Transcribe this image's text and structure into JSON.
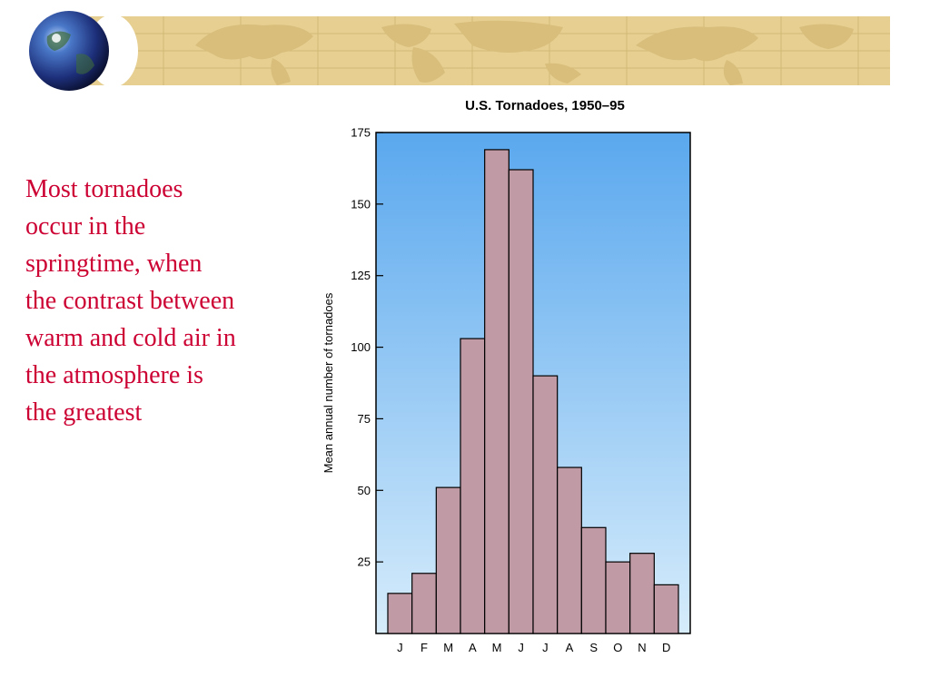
{
  "slide": {
    "caption": "Most tornadoes\noccur in the\nspringtime, when\nthe contrast between\nwarm and cold air in\nthe atmosphere is\nthe greatest",
    "caption_color": "#cc0033",
    "banner_icon": "globe-icon",
    "banner_image": "world-map-strip"
  },
  "chart_data": {
    "type": "bar",
    "title": "U.S. Tornadoes, 1950–95",
    "xlabel": "",
    "ylabel": "Mean annual number of tornadoes",
    "categories": [
      "J",
      "F",
      "M",
      "A",
      "M",
      "J",
      "J",
      "A",
      "S",
      "O",
      "N",
      "D"
    ],
    "values": [
      14,
      21,
      51,
      103,
      169,
      162,
      90,
      58,
      37,
      25,
      28,
      17
    ],
    "ylim": [
      0,
      175
    ],
    "yticks": [
      25,
      50,
      75,
      100,
      125,
      150,
      175
    ],
    "grid": false,
    "legend": "none",
    "bar_color": "#c09aa5",
    "bar_stroke": "#000000",
    "background_gradient": [
      "#5aa8ee",
      "#d6ecfb"
    ]
  }
}
